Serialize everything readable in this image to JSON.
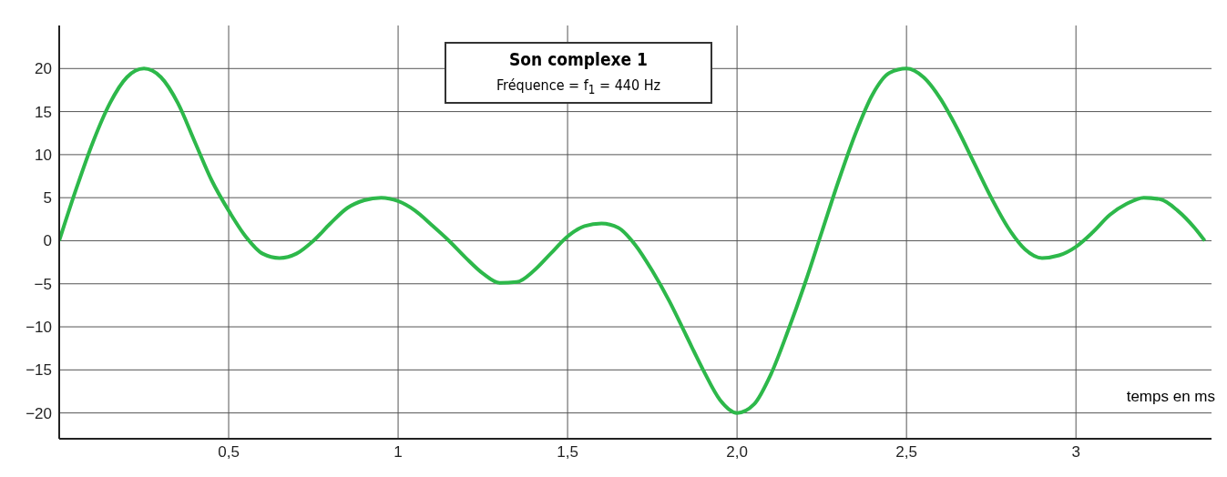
{
  "chart_data": {
    "type": "line",
    "title": "Son complexe 1",
    "annotations": [
      "Fréquence = f$_{1}$ = 440 Hz"
    ],
    "xlabel": "temps en ms",
    "x": [
      0,
      0.05,
      0.1,
      0.15,
      0.2,
      0.25,
      0.3,
      0.35,
      0.4,
      0.45,
      0.5,
      0.55,
      0.6,
      0.65,
      0.7,
      0.75,
      0.8,
      0.85,
      0.9,
      0.95,
      1.0,
      1.05,
      1.1,
      1.15,
      1.2,
      1.25,
      1.3,
      1.35,
      1.4,
      1.45,
      1.5,
      1.55,
      1.6,
      1.65,
      1.7,
      1.75,
      1.8,
      1.85,
      1.9,
      1.95,
      2.0,
      2.05,
      2.1,
      2.15,
      2.2,
      2.25,
      2.3,
      2.35,
      2.4,
      2.45,
      2.5,
      2.55,
      2.6,
      2.65,
      2.7,
      2.75,
      2.8,
      2.85,
      2.9,
      2.95,
      3.0,
      3.05,
      3.1,
      3.15,
      3.2,
      3.25,
      3.3,
      3.35,
      3.38
    ],
    "series": [
      {
        "color": "#2db84a",
        "values": [
          0,
          6,
          11.5,
          16,
          19,
          20,
          19,
          16,
          11.5,
          7,
          3.5,
          0.5,
          -1.5,
          -2,
          -1.5,
          0,
          2,
          3.8,
          4.7,
          5,
          4.6,
          3.5,
          1.8,
          0,
          -2,
          -3.8,
          -4.9,
          -4.8,
          -3.5,
          -1.5,
          0.5,
          1.7,
          2,
          1.5,
          -0.5,
          -3.5,
          -7,
          -11,
          -15,
          -18.5,
          -20,
          -19,
          -15.5,
          -10.5,
          -5,
          1,
          7,
          12.5,
          17,
          19.5,
          20,
          19,
          16.5,
          13,
          9,
          5,
          1.5,
          -1,
          -2,
          -1.7,
          -0.7,
          1,
          3,
          4.3,
          5,
          4.8,
          3.5,
          1.5,
          0
        ]
      }
    ],
    "xlim": [
      0,
      3.4
    ],
    "xticks": [
      {
        "value": 0.5,
        "label": "0,5"
      },
      {
        "value": 1,
        "label": "1"
      },
      {
        "value": 1.5,
        "label": "1,5"
      },
      {
        "value": 2,
        "label": "2,0"
      },
      {
        "value": 2.5,
        "label": "2,5"
      },
      {
        "value": 3,
        "label": "3"
      }
    ],
    "ylim": [
      -23,
      25
    ],
    "yticks": [
      {
        "value": -20,
        "label": "−20"
      },
      {
        "value": -15,
        "label": "−15"
      },
      {
        "value": -10,
        "label": "−10"
      },
      {
        "value": -5,
        "label": "−5"
      },
      0,
      5,
      10,
      15,
      20
    ],
    "grid": true,
    "legend": false,
    "marker": "none",
    "line_style": "solid"
  }
}
